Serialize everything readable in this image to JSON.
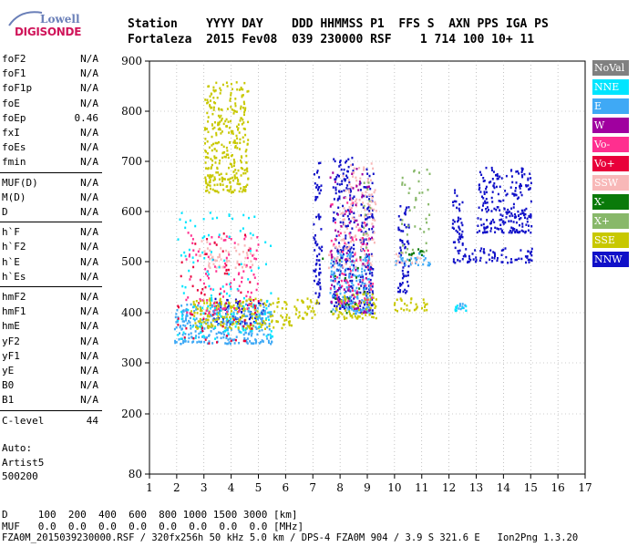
{
  "logo": {
    "top_word": "Lowell",
    "bottom_word": "DIGISONDE"
  },
  "header": {
    "labels": "Station    YYYY DAY    DDD HHMMSS P1  FFS S  AXN PPS IGA PS",
    "values": "Fortaleza  2015 Fev08  039 230000 RSF    1 714 100 10+ 11"
  },
  "params": {
    "group1": [
      {
        "name": "foF2",
        "value": "N/A"
      },
      {
        "name": "foF1",
        "value": "N/A"
      },
      {
        "name": "foF1p",
        "value": "N/A"
      },
      {
        "name": "foE",
        "value": "N/A"
      },
      {
        "name": "foEp",
        "value": "0.46"
      },
      {
        "name": "fxI",
        "value": "N/A"
      },
      {
        "name": "foEs",
        "value": "N/A"
      },
      {
        "name": "fmin",
        "value": "N/A"
      }
    ],
    "group2": [
      {
        "name": "MUF(D)",
        "value": "N/A"
      },
      {
        "name": "M(D)",
        "value": "N/A"
      },
      {
        "name": "D",
        "value": "N/A"
      }
    ],
    "group3": [
      {
        "name": "h`F",
        "value": "N/A"
      },
      {
        "name": "h`F2",
        "value": "N/A"
      },
      {
        "name": "h`E",
        "value": "N/A"
      },
      {
        "name": "h`Es",
        "value": "N/A"
      }
    ],
    "group4": [
      {
        "name": "hmF2",
        "value": "N/A"
      },
      {
        "name": "hmF1",
        "value": "N/A"
      },
      {
        "name": "hmE",
        "value": "N/A"
      },
      {
        "name": "yF2",
        "value": "N/A"
      },
      {
        "name": "yF1",
        "value": "N/A"
      },
      {
        "name": "yE",
        "value": "N/A"
      },
      {
        "name": "B0",
        "value": "N/A"
      },
      {
        "name": "B1",
        "value": "N/A"
      }
    ],
    "group5": [
      {
        "name": "C-level",
        "value": "44"
      }
    ]
  },
  "autoscaling": {
    "line1": "Auto:",
    "line2": "Artist5",
    "line3": "500200"
  },
  "legend": [
    {
      "label": "NoVal",
      "color": "#808080"
    },
    {
      "label": "NNE",
      "color": "#00e5ff"
    },
    {
      "label": "E",
      "color": "#3fa9f5"
    },
    {
      "label": "W",
      "color": "#a0009f"
    },
    {
      "label": "Vo-",
      "color": "#ff2f8f"
    },
    {
      "label": "Vo+",
      "color": "#e8003a"
    },
    {
      "label": "SSW",
      "color": "#f8b8b8"
    },
    {
      "label": "X-",
      "color": "#0a7a0a"
    },
    {
      "label": "X+",
      "color": "#88b86a"
    },
    {
      "label": "SSE",
      "color": "#c8c800"
    },
    {
      "label": "NNW",
      "color": "#1010c8"
    }
  ],
  "footer": {
    "row1": "D     100  200  400  600  800 1000 1500 3000 [km]",
    "row2": "MUF   0.0  0.0  0.0  0.0  0.0  0.0  0.0  0.0 [MHz]",
    "row3": "FZA0M_2015039230000.RSF / 320fx256h 50 kHz 5.0 km / DPS-4 FZA0M 904 / 3.9 S 321.6 E   Ion2Png 1.3.20"
  },
  "chart_data": {
    "type": "scatter",
    "title": "",
    "xlabel": "",
    "ylabel": "",
    "xlim": [
      1,
      17
    ],
    "ylim": [
      80,
      900
    ],
    "x_ticks": [
      1,
      2,
      3,
      4,
      5,
      6,
      7,
      8,
      9,
      10,
      11,
      12,
      13,
      14,
      15,
      16,
      17
    ],
    "y_ticks": [
      80,
      200,
      300,
      400,
      500,
      600,
      700,
      800,
      900
    ],
    "grid": true,
    "legend_position": "right",
    "series": [
      {
        "name": "NNW",
        "color": "#1010c8",
        "clusters": [
          {
            "x": [
              7.0,
              7.3
            ],
            "y": [
              420,
              700
            ]
          },
          {
            "x": [
              7.7,
              8.5
            ],
            "y": [
              410,
              710
            ]
          },
          {
            "x": [
              8.7,
              9.2
            ],
            "y": [
              400,
              690
            ]
          },
          {
            "x": [
              10.1,
              10.5
            ],
            "y": [
              440,
              620
            ]
          },
          {
            "x": [
              12.1,
              12.5
            ],
            "y": [
              500,
              650
            ]
          },
          {
            "x": [
              12.5,
              15.1
            ],
            "y": [
              500,
              530
            ]
          },
          {
            "x": [
              13.0,
              15.0
            ],
            "y": [
              560,
              690
            ]
          },
          {
            "x": [
              3.3,
              5.2
            ],
            "y": [
              380,
              430
            ]
          }
        ]
      },
      {
        "name": "E",
        "color": "#3fa9f5",
        "clusters": [
          {
            "x": [
              1.9,
              5.5
            ],
            "y": [
              340,
              420
            ]
          },
          {
            "x": [
              7.6,
              9.1
            ],
            "y": [
              400,
              520
            ]
          },
          {
            "x": [
              12.3,
              12.6
            ],
            "y": [
              405,
              420
            ]
          },
          {
            "x": [
              10.0,
              11.3
            ],
            "y": [
              495,
              520
            ]
          }
        ]
      },
      {
        "name": "SSE",
        "color": "#c8c800",
        "clusters": [
          {
            "x": [
              2.5,
              6.2
            ],
            "y": [
              370,
              430
            ]
          },
          {
            "x": [
              6.3,
              7.2
            ],
            "y": [
              390,
              430
            ]
          },
          {
            "x": [
              7.7,
              9.3
            ],
            "y": [
              390,
              440
            ]
          },
          {
            "x": [
              9.9,
              11.2
            ],
            "y": [
              405,
              430
            ]
          },
          {
            "x": [
              3.0,
              4.6
            ],
            "y": [
              640,
              860
            ]
          }
        ]
      },
      {
        "name": "SSW",
        "color": "#f8b8b8",
        "clusters": [
          {
            "x": [
              2.8,
              4.8
            ],
            "y": [
              490,
              550
            ]
          },
          {
            "x": [
              7.5,
              9.2
            ],
            "y": [
              490,
              540
            ]
          },
          {
            "x": [
              10.0,
              11.1
            ],
            "y": [
              495,
              520
            ]
          },
          {
            "x": [
              8.0,
              9.3
            ],
            "y": [
              540,
              700
            ]
          }
        ]
      },
      {
        "name": "X+",
        "color": "#88b86a",
        "clusters": [
          {
            "x": [
              10.2,
              11.3
            ],
            "y": [
              520,
              700
            ]
          },
          {
            "x": [
              8.8,
              9.2
            ],
            "y": [
              520,
              660
            ]
          }
        ]
      },
      {
        "name": "Vo-",
        "color": "#ff2f8f",
        "clusters": [
          {
            "x": [
              2.3,
              5.0
            ],
            "y": [
              400,
              560
            ]
          },
          {
            "x": [
              7.6,
              9.2
            ],
            "y": [
              420,
              620
            ]
          }
        ]
      },
      {
        "name": "W",
        "color": "#a0009f",
        "clusters": [
          {
            "x": [
              7.6,
              9.2
            ],
            "y": [
              400,
              690
            ]
          }
        ]
      },
      {
        "name": "X-",
        "color": "#0a7a0a",
        "clusters": [
          {
            "x": [
              7.0,
              9.0
            ],
            "y": [
              400,
              520
            ]
          },
          {
            "x": [
              10.5,
              11.0
            ],
            "y": [
              500,
              530
            ]
          }
        ]
      },
      {
        "name": "NNE",
        "color": "#00e5ff",
        "clusters": [
          {
            "x": [
              2.0,
              5.5
            ],
            "y": [
              350,
              600
            ]
          },
          {
            "x": [
              12.2,
              12.6
            ],
            "y": [
              405,
              420
            ]
          }
        ]
      },
      {
        "name": "Vo+",
        "color": "#e8003a",
        "clusters": [
          {
            "x": [
              2.0,
              5.0
            ],
            "y": [
              340,
              560
            ]
          }
        ]
      }
    ]
  }
}
